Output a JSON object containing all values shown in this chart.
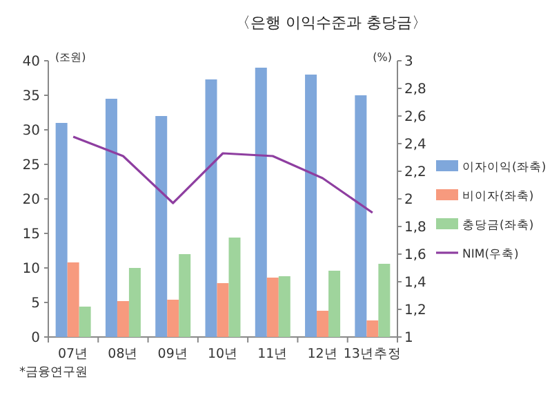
{
  "chart_data": {
    "type": "bar",
    "title": "〈은행 이익수준과 충당금〉",
    "ylabel": "(조원)",
    "y2label": "(%)",
    "categories": [
      "07년",
      "08년",
      "09년",
      "10년",
      "11년",
      "12년",
      "13년추정"
    ],
    "series": [
      {
        "name": "이자이익(좌축)",
        "color": "#7fa7db",
        "values": [
          31,
          34.5,
          32,
          37.3,
          39,
          38,
          35
        ]
      },
      {
        "name": "비이자(좌축)",
        "color": "#f79a7e",
        "values": [
          10.8,
          5.2,
          5.4,
          7.8,
          8.6,
          3.8,
          2.4
        ]
      },
      {
        "name": "충당금(좌축)",
        "color": "#9fd49c",
        "values": [
          4.4,
          10,
          12,
          14.4,
          8.8,
          9.6,
          10.6
        ]
      },
      {
        "name": "NIM(우축)",
        "type": "line",
        "axis": "y2",
        "color": "#8e3ea0",
        "values": [
          2.45,
          2.31,
          1.97,
          2.33,
          2.31,
          2.15,
          1.9
        ]
      }
    ],
    "ylim": [
      0,
      40
    ],
    "yticks": [
      0,
      5,
      10,
      15,
      20,
      25,
      30,
      35,
      40
    ],
    "y2lim": [
      1,
      3
    ],
    "y2ticks": [
      1,
      {
        "value": 1.2,
        "label": "1,2"
      },
      {
        "value": 1.4,
        "label": "1,4"
      },
      {
        "value": 1.6,
        "label": "1,6"
      },
      {
        "value": 1.8,
        "label": "1,8"
      },
      2,
      {
        "value": 2.2,
        "label": "2,2"
      },
      {
        "value": 2.4,
        "label": "2,4"
      },
      {
        "value": 2.6,
        "label": "2,6"
      },
      {
        "value": 2.8,
        "label": "2,8"
      },
      3
    ],
    "legend": "right",
    "annotations": [
      "*금융연구원"
    ]
  }
}
